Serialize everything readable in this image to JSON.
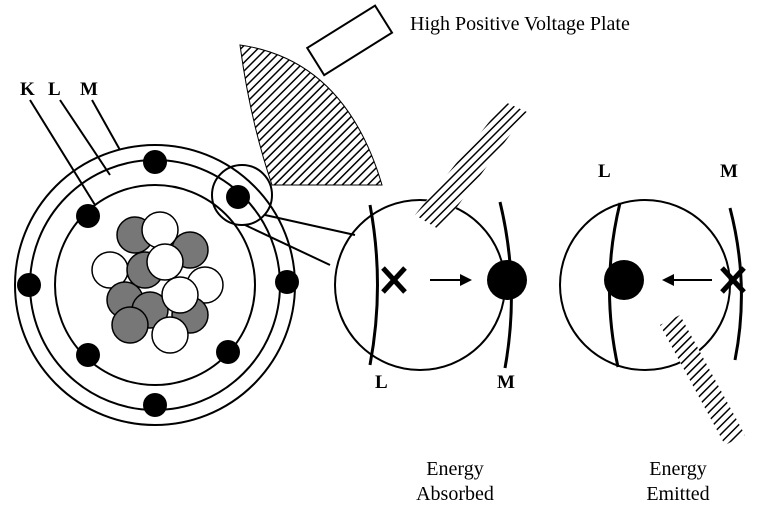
{
  "title": "High Positive Voltage Plate",
  "shell_labels": [
    "K",
    "L",
    "M"
  ],
  "absorbed_panel": {
    "labels": [
      "L",
      "M"
    ],
    "caption": [
      "Energy",
      "Absorbed"
    ]
  },
  "emitted_panel": {
    "labels": [
      "L",
      "M"
    ],
    "caption": [
      "Energy",
      "Emitted"
    ]
  }
}
